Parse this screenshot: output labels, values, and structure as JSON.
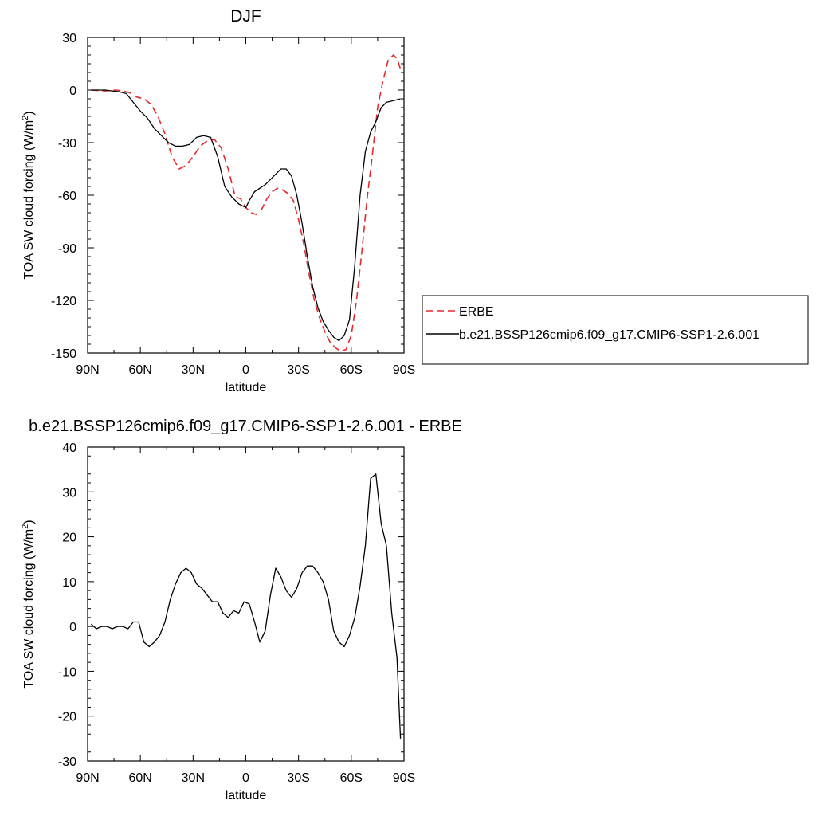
{
  "chart_data": [
    {
      "type": "line",
      "title": "DJF",
      "xlabel": "latitude",
      "ylabel": "TOA SW cloud forcing (W/m",
      "ylabel_sup": "2",
      "ylabel_close": ")",
      "xlim": [
        90,
        -90
      ],
      "ylim": [
        -150,
        30
      ],
      "x_ticks": [
        90,
        60,
        30,
        0,
        -30,
        -60,
        -90
      ],
      "x_tick_labels": [
        "90N",
        "60N",
        "30N",
        "0",
        "30S",
        "60S",
        "90S"
      ],
      "y_ticks": [
        30,
        0,
        -30,
        -60,
        -90,
        -120,
        -150
      ],
      "y_tick_labels": [
        "30",
        "0",
        "-30",
        "-60",
        "-90",
        "-120",
        "-150"
      ],
      "legend": {
        "placement": "right",
        "entries": [
          "ERBE",
          "b.e21.BSSP126cmip6.f09_g17.CMIP6-SSP1-2.6.001"
        ]
      },
      "series": [
        {
          "name": "ERBE",
          "color": "#e8292b",
          "dash": "dashed",
          "x": [
            88,
            80,
            74,
            70,
            66,
            62,
            58,
            54,
            50,
            46,
            42,
            38,
            34,
            30,
            26,
            22,
            18,
            14,
            10,
            6,
            3,
            0,
            -3,
            -6,
            -9,
            -12,
            -15,
            -18,
            -21,
            -24,
            -27,
            -30,
            -33,
            -36,
            -39,
            -42,
            -45,
            -48,
            -51,
            -54,
            -57,
            -60,
            -63,
            -66,
            -69,
            -72,
            -75,
            -78,
            -81,
            -84,
            -86,
            -88
          ],
          "y": [
            0,
            -0.5,
            0,
            -0.5,
            -1.5,
            -4,
            -5,
            -8,
            -15,
            -25,
            -38,
            -45,
            -43,
            -38,
            -32,
            -29,
            -28,
            -33,
            -45,
            -61,
            -62,
            -67,
            -70,
            -71,
            -68,
            -62,
            -58,
            -56,
            -57,
            -59,
            -63,
            -74,
            -88,
            -105,
            -120,
            -130,
            -138,
            -144,
            -147,
            -149,
            -148,
            -140,
            -120,
            -92,
            -62,
            -37,
            -10,
            5,
            17,
            20,
            18,
            12
          ]
        },
        {
          "name": "b.e21.BSSP126cmip6.f09_g17.CMIP6-SSP1-2.6.001",
          "color": "#000000",
          "dash": "solid",
          "x": [
            88,
            84,
            80,
            76,
            72,
            68,
            64,
            60,
            56,
            52,
            48,
            44,
            40,
            36,
            32,
            28,
            24,
            20,
            16,
            12,
            8,
            4,
            0,
            -2,
            -5,
            -8,
            -11,
            -14,
            -17,
            -20,
            -23,
            -26,
            -29,
            -32,
            -35,
            -38,
            -41,
            -44,
            -47,
            -50,
            -53,
            -56,
            -59,
            -62,
            -65,
            -68,
            -71,
            -74,
            -77,
            -80,
            -84,
            -88
          ],
          "y": [
            0,
            0,
            0,
            -0.5,
            -1,
            -2,
            -7,
            -12,
            -16,
            -22,
            -26,
            -30,
            -32,
            -32,
            -31,
            -27,
            -26,
            -27,
            -38,
            -55,
            -61,
            -65,
            -67,
            -63,
            -58,
            -56,
            -54,
            -51,
            -48,
            -45,
            -45,
            -49,
            -60,
            -76,
            -95,
            -112,
            -124,
            -132,
            -137,
            -141,
            -143,
            -140,
            -131,
            -100,
            -60,
            -35,
            -24,
            -18,
            -10,
            -7,
            -6,
            -5
          ]
        }
      ]
    },
    {
      "type": "line",
      "title": "b.e21.BSSP126cmip6.f09_g17.CMIP6-SSP1-2.6.001 - ERBE",
      "xlabel": "latitude",
      "ylabel": "TOA SW cloud forcing (W/m",
      "ylabel_sup": "2",
      "ylabel_close": ")",
      "xlim": [
        90,
        -90
      ],
      "ylim": [
        -30,
        40
      ],
      "x_ticks": [
        90,
        60,
        30,
        0,
        -30,
        -60,
        -90
      ],
      "x_tick_labels": [
        "90N",
        "60N",
        "30N",
        "0",
        "30S",
        "60S",
        "90S"
      ],
      "y_ticks": [
        40,
        30,
        20,
        10,
        0,
        -10,
        -20,
        -30
      ],
      "y_tick_labels": [
        "40",
        "30",
        "20",
        "10",
        "0",
        "-10",
        "-20",
        "-30"
      ],
      "series": [
        {
          "color": "#000000",
          "dash": "solid",
          "x": [
            88,
            85,
            82,
            79,
            76,
            73,
            70,
            67,
            64,
            61,
            58,
            55,
            52,
            49,
            46,
            43,
            40,
            37,
            34,
            31,
            28,
            25,
            22,
            19,
            16,
            13,
            10,
            7,
            4,
            1,
            -2,
            -5,
            -8,
            -11,
            -14,
            -17,
            -20,
            -23,
            -26,
            -29,
            -32,
            -35,
            -38,
            -41,
            -44,
            -47,
            -50,
            -53,
            -56,
            -59,
            -62,
            -65,
            -68,
            -71,
            -74,
            -77,
            -80,
            -83,
            -86,
            -88
          ],
          "y": [
            0.5,
            -0.5,
            0,
            0,
            -0.5,
            0,
            0,
            -0.5,
            1,
            1,
            -3.5,
            -4.5,
            -3.5,
            -2,
            1,
            6,
            9.5,
            12,
            13,
            12,
            9.5,
            8.5,
            7,
            5.5,
            5.5,
            3,
            2,
            3.5,
            3,
            5.5,
            5,
            1,
            -3.5,
            -1,
            7,
            13,
            11,
            8,
            6.5,
            8.5,
            12,
            13.5,
            13.5,
            12,
            10,
            6,
            -1,
            -3.5,
            -4.5,
            -2,
            2,
            9,
            18,
            33,
            34,
            23,
            18,
            3,
            -7,
            -25
          ]
        }
      ]
    }
  ]
}
